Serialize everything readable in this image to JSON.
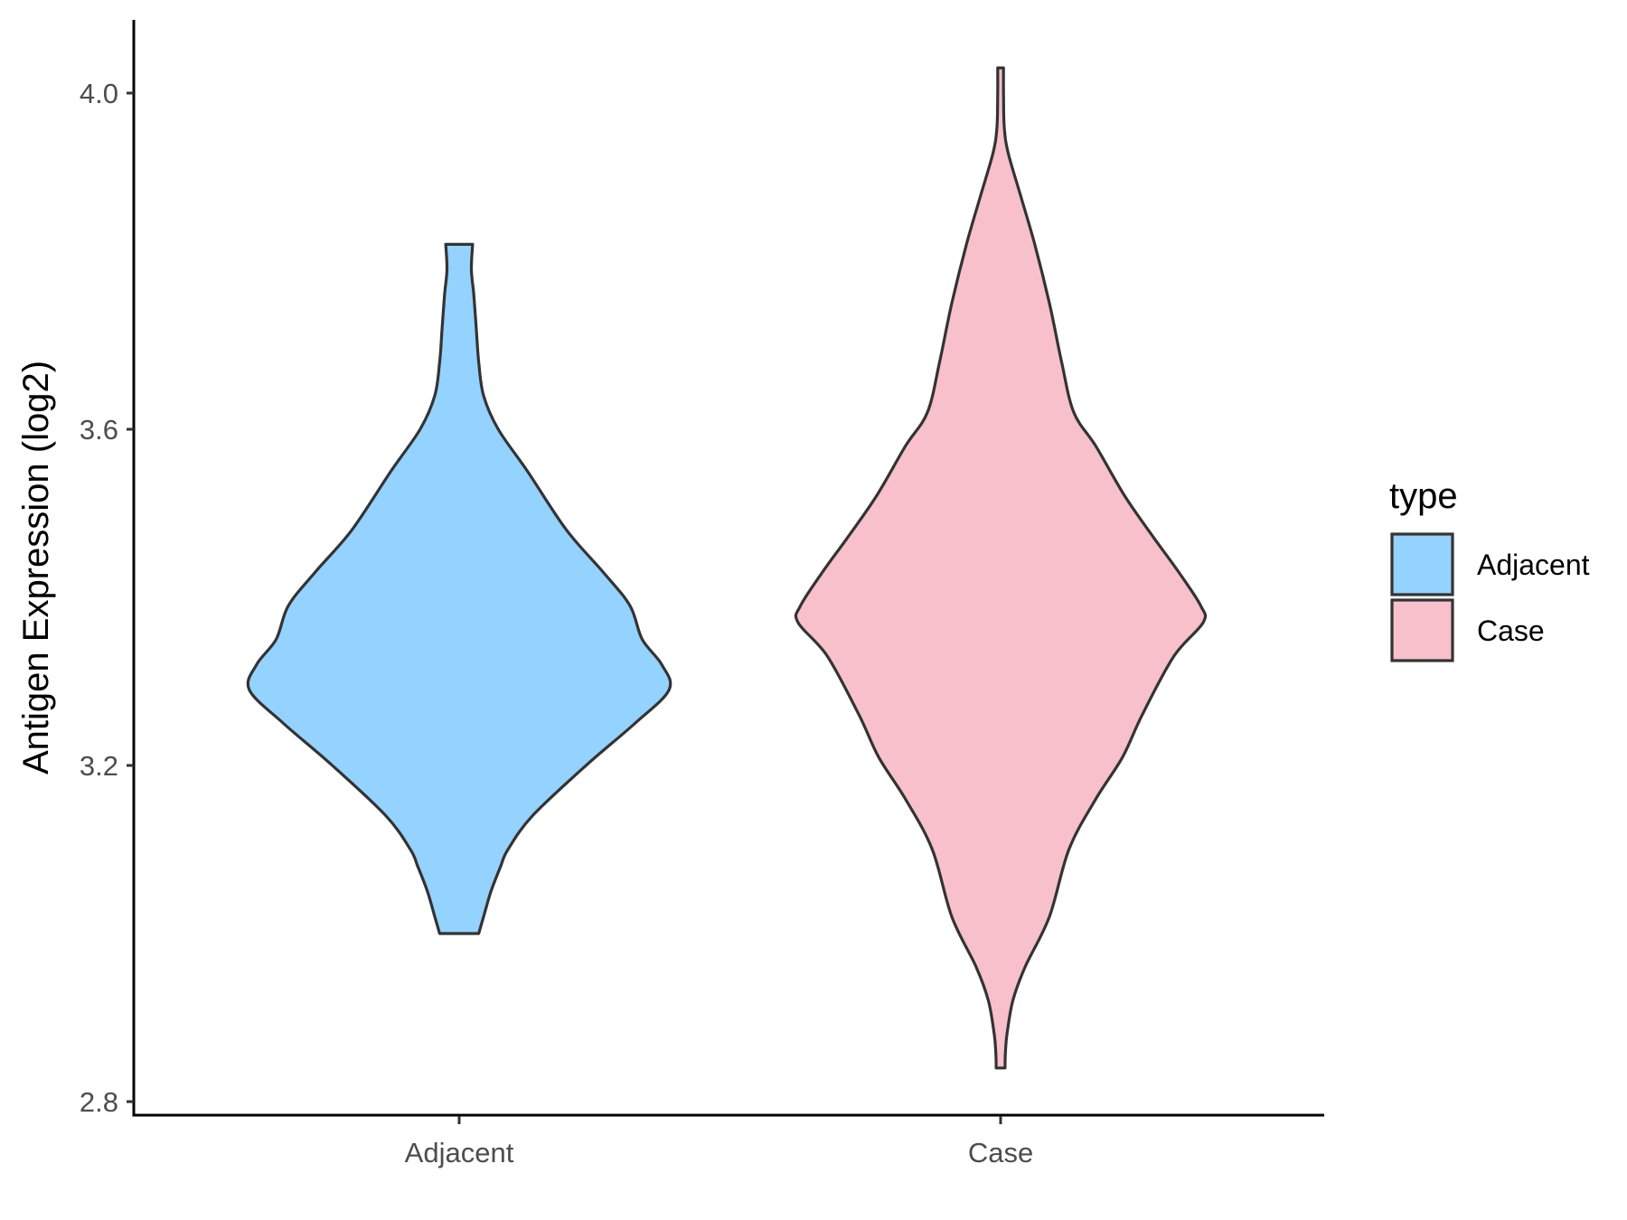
{
  "chart_data": {
    "type": "violin",
    "ylabel": "Antigen Expression (log2)",
    "xlabel": "",
    "categories": [
      "Adjacent",
      "Case"
    ],
    "ylim": [
      2.78,
      4.09
    ],
    "yticks": [
      2.8,
      3.2,
      3.6,
      4.0
    ],
    "ytick_labels": [
      "2.8",
      "3.2",
      "3.6",
      "4.0"
    ],
    "legend": {
      "title": "type",
      "position": "right",
      "entries": [
        "Adjacent",
        "Case"
      ]
    },
    "series": [
      {
        "name": "Adjacent",
        "color": "#94d2ff",
        "min": 3.0,
        "max": 3.82,
        "profile": [
          [
            3.0,
            0.08
          ],
          [
            3.02,
            0.1
          ],
          [
            3.05,
            0.13
          ],
          [
            3.08,
            0.17
          ],
          [
            3.1,
            0.2
          ],
          [
            3.14,
            0.3
          ],
          [
            3.2,
            0.52
          ],
          [
            3.25,
            0.72
          ],
          [
            3.29,
            0.86
          ],
          [
            3.32,
            0.83
          ],
          [
            3.35,
            0.75
          ],
          [
            3.39,
            0.7
          ],
          [
            3.43,
            0.59
          ],
          [
            3.48,
            0.44
          ],
          [
            3.55,
            0.28
          ],
          [
            3.6,
            0.16
          ],
          [
            3.64,
            0.1
          ],
          [
            3.68,
            0.08
          ],
          [
            3.72,
            0.07
          ],
          [
            3.76,
            0.06
          ],
          [
            3.79,
            0.05
          ],
          [
            3.82,
            0.055
          ]
        ]
      },
      {
        "name": "Case",
        "color": "#f7c0cb",
        "min": 2.84,
        "max": 4.03,
        "profile": [
          [
            2.84,
            0.018
          ],
          [
            2.86,
            0.02
          ],
          [
            2.88,
            0.026
          ],
          [
            2.92,
            0.05
          ],
          [
            2.96,
            0.1
          ],
          [
            3.02,
            0.2
          ],
          [
            3.1,
            0.28
          ],
          [
            3.16,
            0.39
          ],
          [
            3.21,
            0.5
          ],
          [
            3.26,
            0.58
          ],
          [
            3.33,
            0.71
          ],
          [
            3.37,
            0.83
          ],
          [
            3.39,
            0.82
          ],
          [
            3.43,
            0.73
          ],
          [
            3.47,
            0.63
          ],
          [
            3.52,
            0.51
          ],
          [
            3.58,
            0.39
          ],
          [
            3.62,
            0.3
          ],
          [
            3.68,
            0.25
          ],
          [
            3.75,
            0.2
          ],
          [
            3.82,
            0.14
          ],
          [
            3.88,
            0.08
          ],
          [
            3.93,
            0.03
          ],
          [
            3.96,
            0.015
          ],
          [
            4.0,
            0.012
          ],
          [
            4.03,
            0.012
          ]
        ]
      }
    ]
  }
}
